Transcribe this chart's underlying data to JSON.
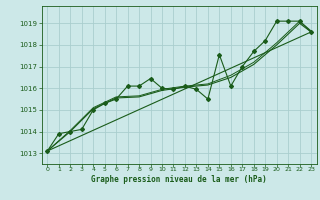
{
  "title": "Graphe pression niveau de la mer (hPa)",
  "bg_color": "#cce8e8",
  "grid_color": "#aacece",
  "line_color": "#1a5c1a",
  "xlim": [
    -0.5,
    23.5
  ],
  "ylim": [
    1012.5,
    1019.8
  ],
  "yticks": [
    1013,
    1014,
    1015,
    1016,
    1017,
    1018,
    1019
  ],
  "xticks": [
    0,
    1,
    2,
    3,
    4,
    5,
    6,
    7,
    8,
    9,
    10,
    11,
    12,
    13,
    14,
    15,
    16,
    17,
    18,
    19,
    20,
    21,
    22,
    23
  ],
  "series_main": [
    [
      0,
      1013.1
    ],
    [
      1,
      1013.9
    ],
    [
      2,
      1014.0
    ],
    [
      3,
      1014.1
    ],
    [
      4,
      1015.0
    ],
    [
      5,
      1015.3
    ],
    [
      6,
      1015.5
    ],
    [
      7,
      1016.1
    ],
    [
      8,
      1016.1
    ],
    [
      9,
      1016.45
    ],
    [
      10,
      1016.0
    ],
    [
      11,
      1015.95
    ],
    [
      12,
      1016.1
    ],
    [
      13,
      1015.95
    ],
    [
      14,
      1015.5
    ],
    [
      15,
      1017.55
    ],
    [
      16,
      1016.1
    ],
    [
      17,
      1017.0
    ],
    [
      18,
      1017.7
    ],
    [
      19,
      1018.2
    ],
    [
      20,
      1019.1
    ],
    [
      21,
      1019.1
    ],
    [
      22,
      1019.1
    ],
    [
      23,
      1018.6
    ]
  ],
  "series_smooth": [
    [
      0,
      1013.1
    ],
    [
      2,
      1014.0
    ],
    [
      4,
      1015.05
    ],
    [
      6,
      1015.55
    ],
    [
      8,
      1015.6
    ],
    [
      10,
      1015.9
    ],
    [
      12,
      1016.05
    ],
    [
      14,
      1016.15
    ],
    [
      16,
      1016.5
    ],
    [
      18,
      1017.1
    ],
    [
      20,
      1018.0
    ],
    [
      22,
      1019.0
    ],
    [
      23,
      1018.6
    ]
  ],
  "series_linear": [
    [
      0,
      1013.1
    ],
    [
      23,
      1018.6
    ]
  ],
  "series_upper": [
    [
      0,
      1013.1
    ],
    [
      2,
      1014.05
    ],
    [
      4,
      1015.1
    ],
    [
      6,
      1015.6
    ],
    [
      8,
      1015.65
    ],
    [
      10,
      1015.95
    ],
    [
      12,
      1016.1
    ],
    [
      14,
      1016.2
    ],
    [
      16,
      1016.6
    ],
    [
      18,
      1017.2
    ],
    [
      20,
      1018.1
    ],
    [
      22,
      1019.1
    ],
    [
      23,
      1018.65
    ]
  ]
}
